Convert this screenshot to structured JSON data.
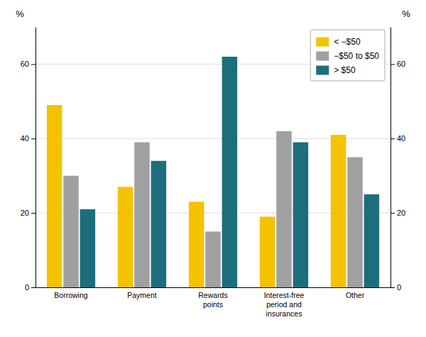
{
  "chart_data": {
    "type": "bar",
    "categories": [
      "Borrowing",
      "Payment",
      "Rewards\npoints",
      "Interest-free\nperiod and\ninsurances",
      "Other"
    ],
    "series": [
      {
        "name": "< −$50",
        "color": "#F5C200",
        "values": [
          49,
          27,
          23,
          19,
          41
        ]
      },
      {
        "name": "−$50 to $50",
        "color": "#A0A0A0",
        "values": [
          30,
          39,
          15,
          42,
          35
        ]
      },
      {
        "name": "> $50",
        "color": "#1C6E7D",
        "values": [
          21,
          34,
          62,
          39,
          25
        ]
      }
    ],
    "ylabel": "%",
    "y2label": "%",
    "ylim": [
      0,
      70
    ],
    "yticks": [
      0,
      20,
      40,
      60
    ],
    "y2lim": [
      0,
      70
    ],
    "y2ticks": [
      0,
      20,
      40,
      60
    ],
    "grid": true,
    "legend": "upper right"
  }
}
